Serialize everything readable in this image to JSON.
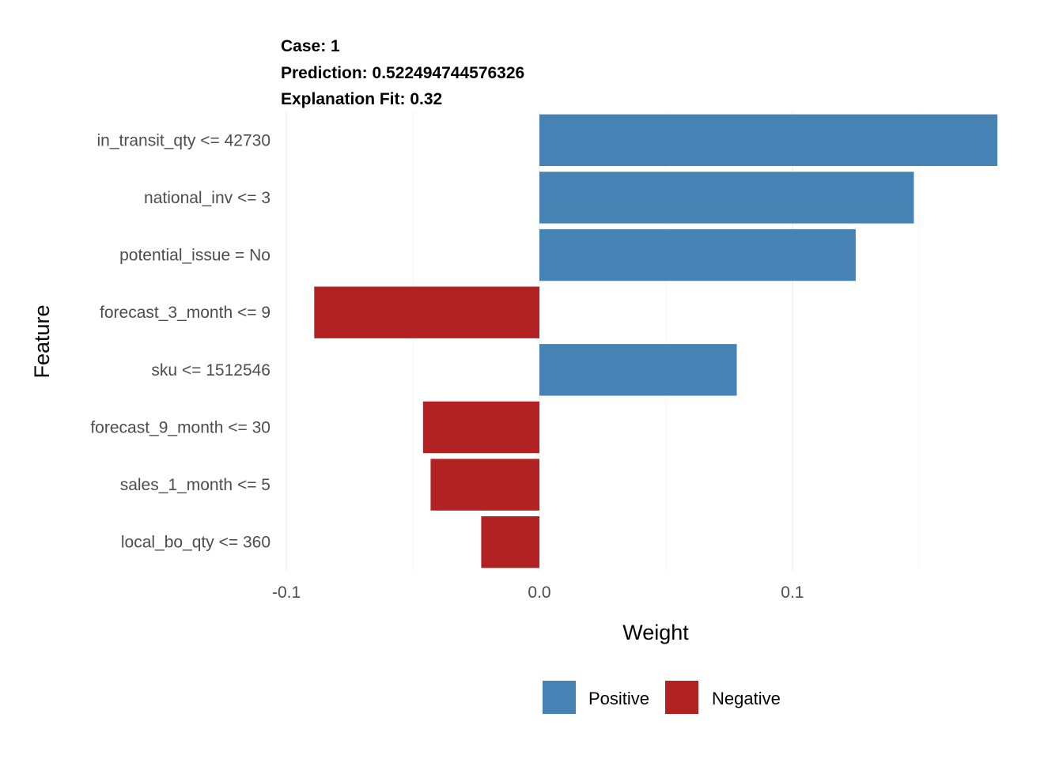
{
  "chart_data": {
    "type": "bar",
    "orientation": "horizontal",
    "title_lines": [
      "Case: 1",
      "Prediction: 0.522494744576326",
      "Explanation Fit: 0.32"
    ],
    "xlabel": "Weight",
    "ylabel": "Feature",
    "xlim": [
      -0.1,
      0.18
    ],
    "x_ticks": [
      -0.1,
      0.0,
      0.1
    ],
    "x_tick_labels": [
      "-0.1",
      "0.0",
      "0.1"
    ],
    "grid": true,
    "legend_position": "bottom",
    "legend": [
      {
        "label": "Positive",
        "color": "#4682B4"
      },
      {
        "label": "Negative",
        "color": "#B22222"
      }
    ],
    "categories": [
      "in_transit_qty <= 42730",
      "national_inv <= 3",
      "potential_issue = No",
      "forecast_3_month <= 9",
      "sku <= 1512546",
      "forecast_9_month <= 30",
      "sales_1_month <= 5",
      "local_bo_qty <= 360"
    ],
    "values": [
      0.181,
      0.148,
      0.125,
      -0.089,
      0.078,
      -0.046,
      -0.043,
      -0.023
    ],
    "colors": {
      "positive": "#4682B4",
      "negative": "#B22222"
    }
  }
}
